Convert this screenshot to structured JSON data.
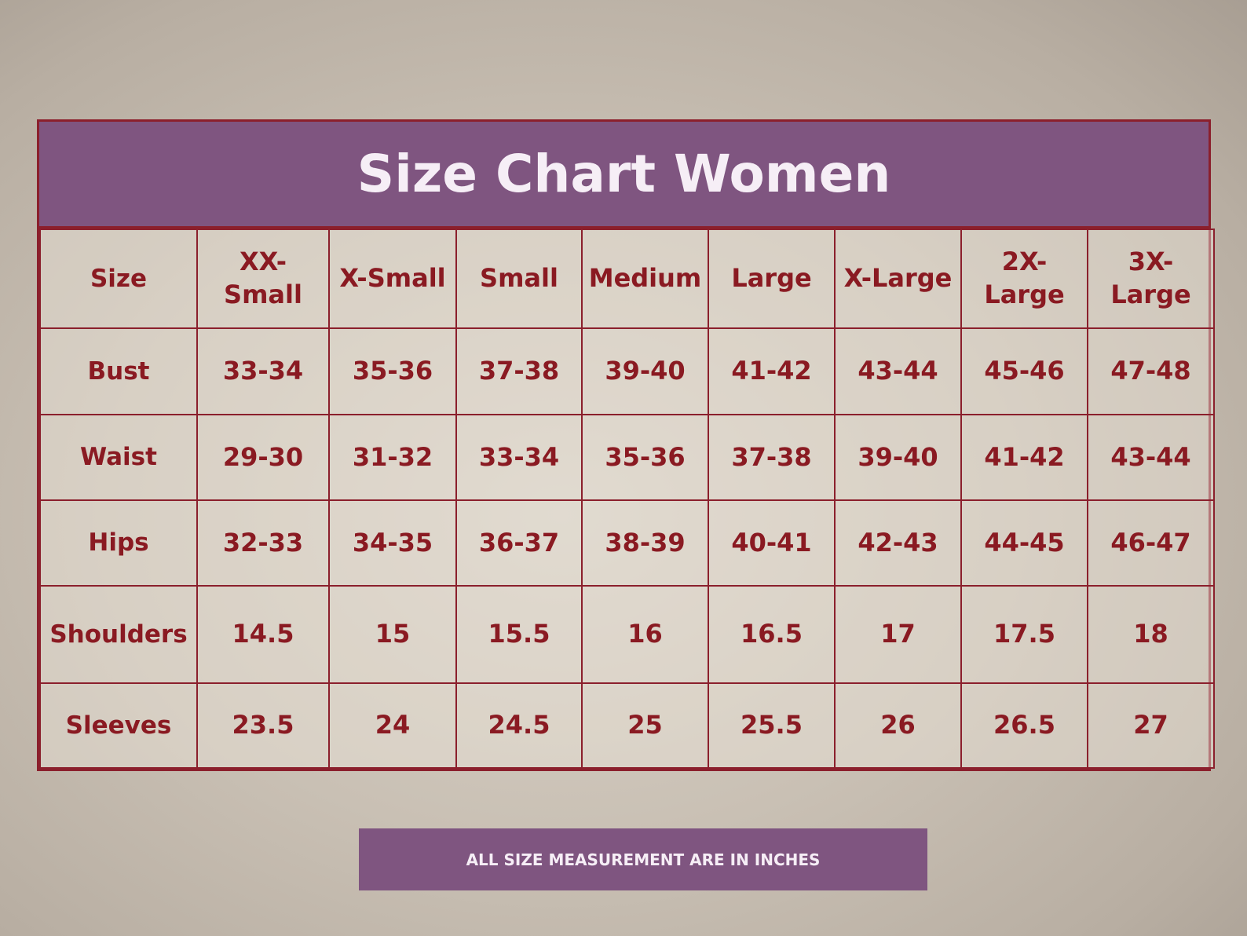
{
  "title": "Size Chart Women",
  "table": {
    "header": [
      "Size",
      "XX-Small",
      "X-Small",
      "Small",
      "Medium",
      "Large",
      "X-Large",
      "2X-Large",
      "3X-Large"
    ],
    "rows": [
      [
        "Bust",
        "33-34",
        "35-36",
        "37-38",
        "39-40",
        "41-42",
        "43-44",
        "45-46",
        "47-48"
      ],
      [
        "Waist",
        "29-30",
        "31-32",
        "33-34",
        "35-36",
        "37-38",
        "39-40",
        "41-42",
        "43-44"
      ],
      [
        "Hips",
        "32-33",
        "34-35",
        "36-37",
        "38-39",
        "40-41",
        "42-43",
        "44-45",
        "46-47"
      ],
      [
        "Shoulders",
        "14.5",
        "15",
        "15.5",
        "16",
        "16.5",
        "17",
        "17.5",
        "18"
      ],
      [
        "Sleeves",
        "23.5",
        "24",
        "24.5",
        "25",
        "25.5",
        "26",
        "26.5",
        "27"
      ]
    ]
  },
  "footer": "ALL SIZE MEASUREMENT ARE IN INCHES"
}
